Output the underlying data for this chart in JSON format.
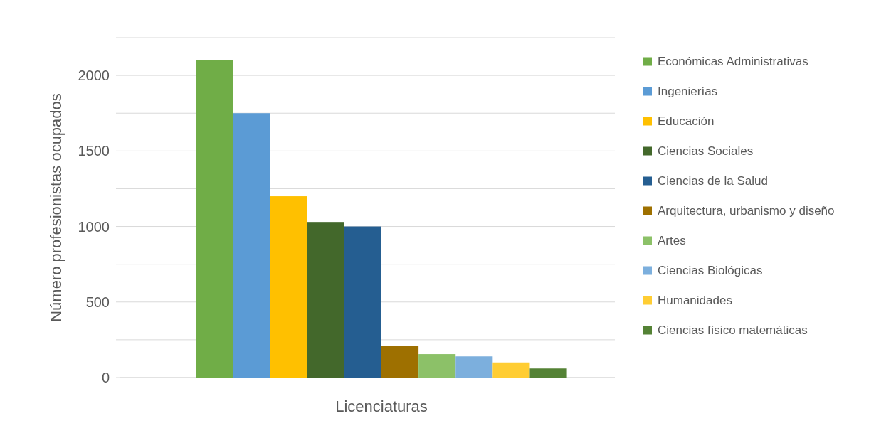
{
  "chart_data": {
    "type": "bar",
    "xlabel": "Licenciaturas",
    "ylabel": "Número profesionistas ocupados",
    "categories": [
      null
    ],
    "series": [
      {
        "name": "Económicas Administrativas",
        "color": "#70ad47",
        "values": [
          2100
        ]
      },
      {
        "name": "Ingenierías",
        "color": "#5b9bd5",
        "values": [
          1750
        ]
      },
      {
        "name": "Educación",
        "color": "#ffc000",
        "values": [
          1200
        ]
      },
      {
        "name": "Ciencias Sociales",
        "color": "#43682b",
        "values": [
          1030
        ]
      },
      {
        "name": "Ciencias de la Salud",
        "color": "#255e91",
        "values": [
          1000
        ]
      },
      {
        "name": "Arquitectura, urbanismo y diseño",
        "color": "#9e7000",
        "values": [
          210
        ]
      },
      {
        "name": "Artes",
        "color": "#8cc168",
        "values": [
          155
        ]
      },
      {
        "name": "Ciencias Biológicas",
        "color": "#7cafdd",
        "values": [
          140
        ]
      },
      {
        "name": "Humanidades",
        "color": "#ffcd33",
        "values": [
          100
        ]
      },
      {
        "name": "Ciencias físico matemáticas",
        "color": "#548235",
        "values": [
          60
        ]
      }
    ],
    "ylim": [
      0,
      2250
    ],
    "yticks": [
      0,
      {
        "value": 250,
        "label": null
      },
      500,
      {
        "value": 750,
        "label": null
      },
      1000,
      {
        "value": 1250,
        "label": null
      },
      1500,
      {
        "value": 1750,
        "label": null
      },
      2000,
      {
        "value": 2250,
        "label": null
      }
    ],
    "grid": "y",
    "legend": "right"
  }
}
